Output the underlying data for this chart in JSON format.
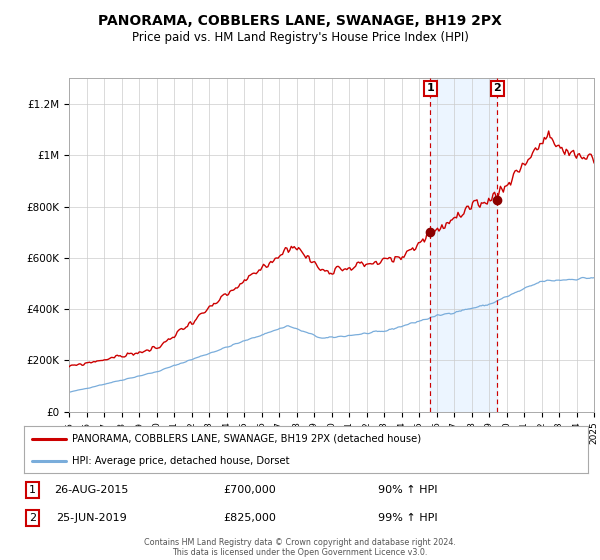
{
  "title": "PANORAMA, COBBLERS LANE, SWANAGE, BH19 2PX",
  "subtitle": "Price paid vs. HM Land Registry's House Price Index (HPI)",
  "title_fontsize": 10,
  "subtitle_fontsize": 8.5,
  "line1_color": "#cc0000",
  "line2_color": "#7aaddb",
  "line1_label": "PANORAMA, COBBLERS LANE, SWANAGE, BH19 2PX (detached house)",
  "line2_label": "HPI: Average price, detached house, Dorset",
  "marker_color": "#8b0000",
  "marker_size": 6,
  "event1_x": 2015.65,
  "event1_y": 700000,
  "event2_x": 2019.48,
  "event2_y": 825000,
  "event1_date": "26-AUG-2015",
  "event1_price": "£700,000",
  "event1_hpi": "90% ↑ HPI",
  "event2_date": "25-JUN-2019",
  "event2_price": "£825,000",
  "event2_hpi": "99% ↑ HPI",
  "shaded_region_color": "#ddeeff",
  "shaded_region_alpha": 0.55,
  "vline_color": "#cc0000",
  "ylim": [
    0,
    1300000
  ],
  "xlim_start": 1995,
  "xlim_end": 2025,
  "yticks": [
    0,
    200000,
    400000,
    600000,
    800000,
    1000000,
    1200000
  ],
  "ytick_labels": [
    "£0",
    "£200K",
    "£400K",
    "£600K",
    "£800K",
    "£1M",
    "£1.2M"
  ],
  "grid_color": "#cccccc",
  "bg_color": "#ffffff",
  "footer_text": "Contains HM Land Registry data © Crown copyright and database right 2024.\nThis data is licensed under the Open Government Licence v3.0."
}
